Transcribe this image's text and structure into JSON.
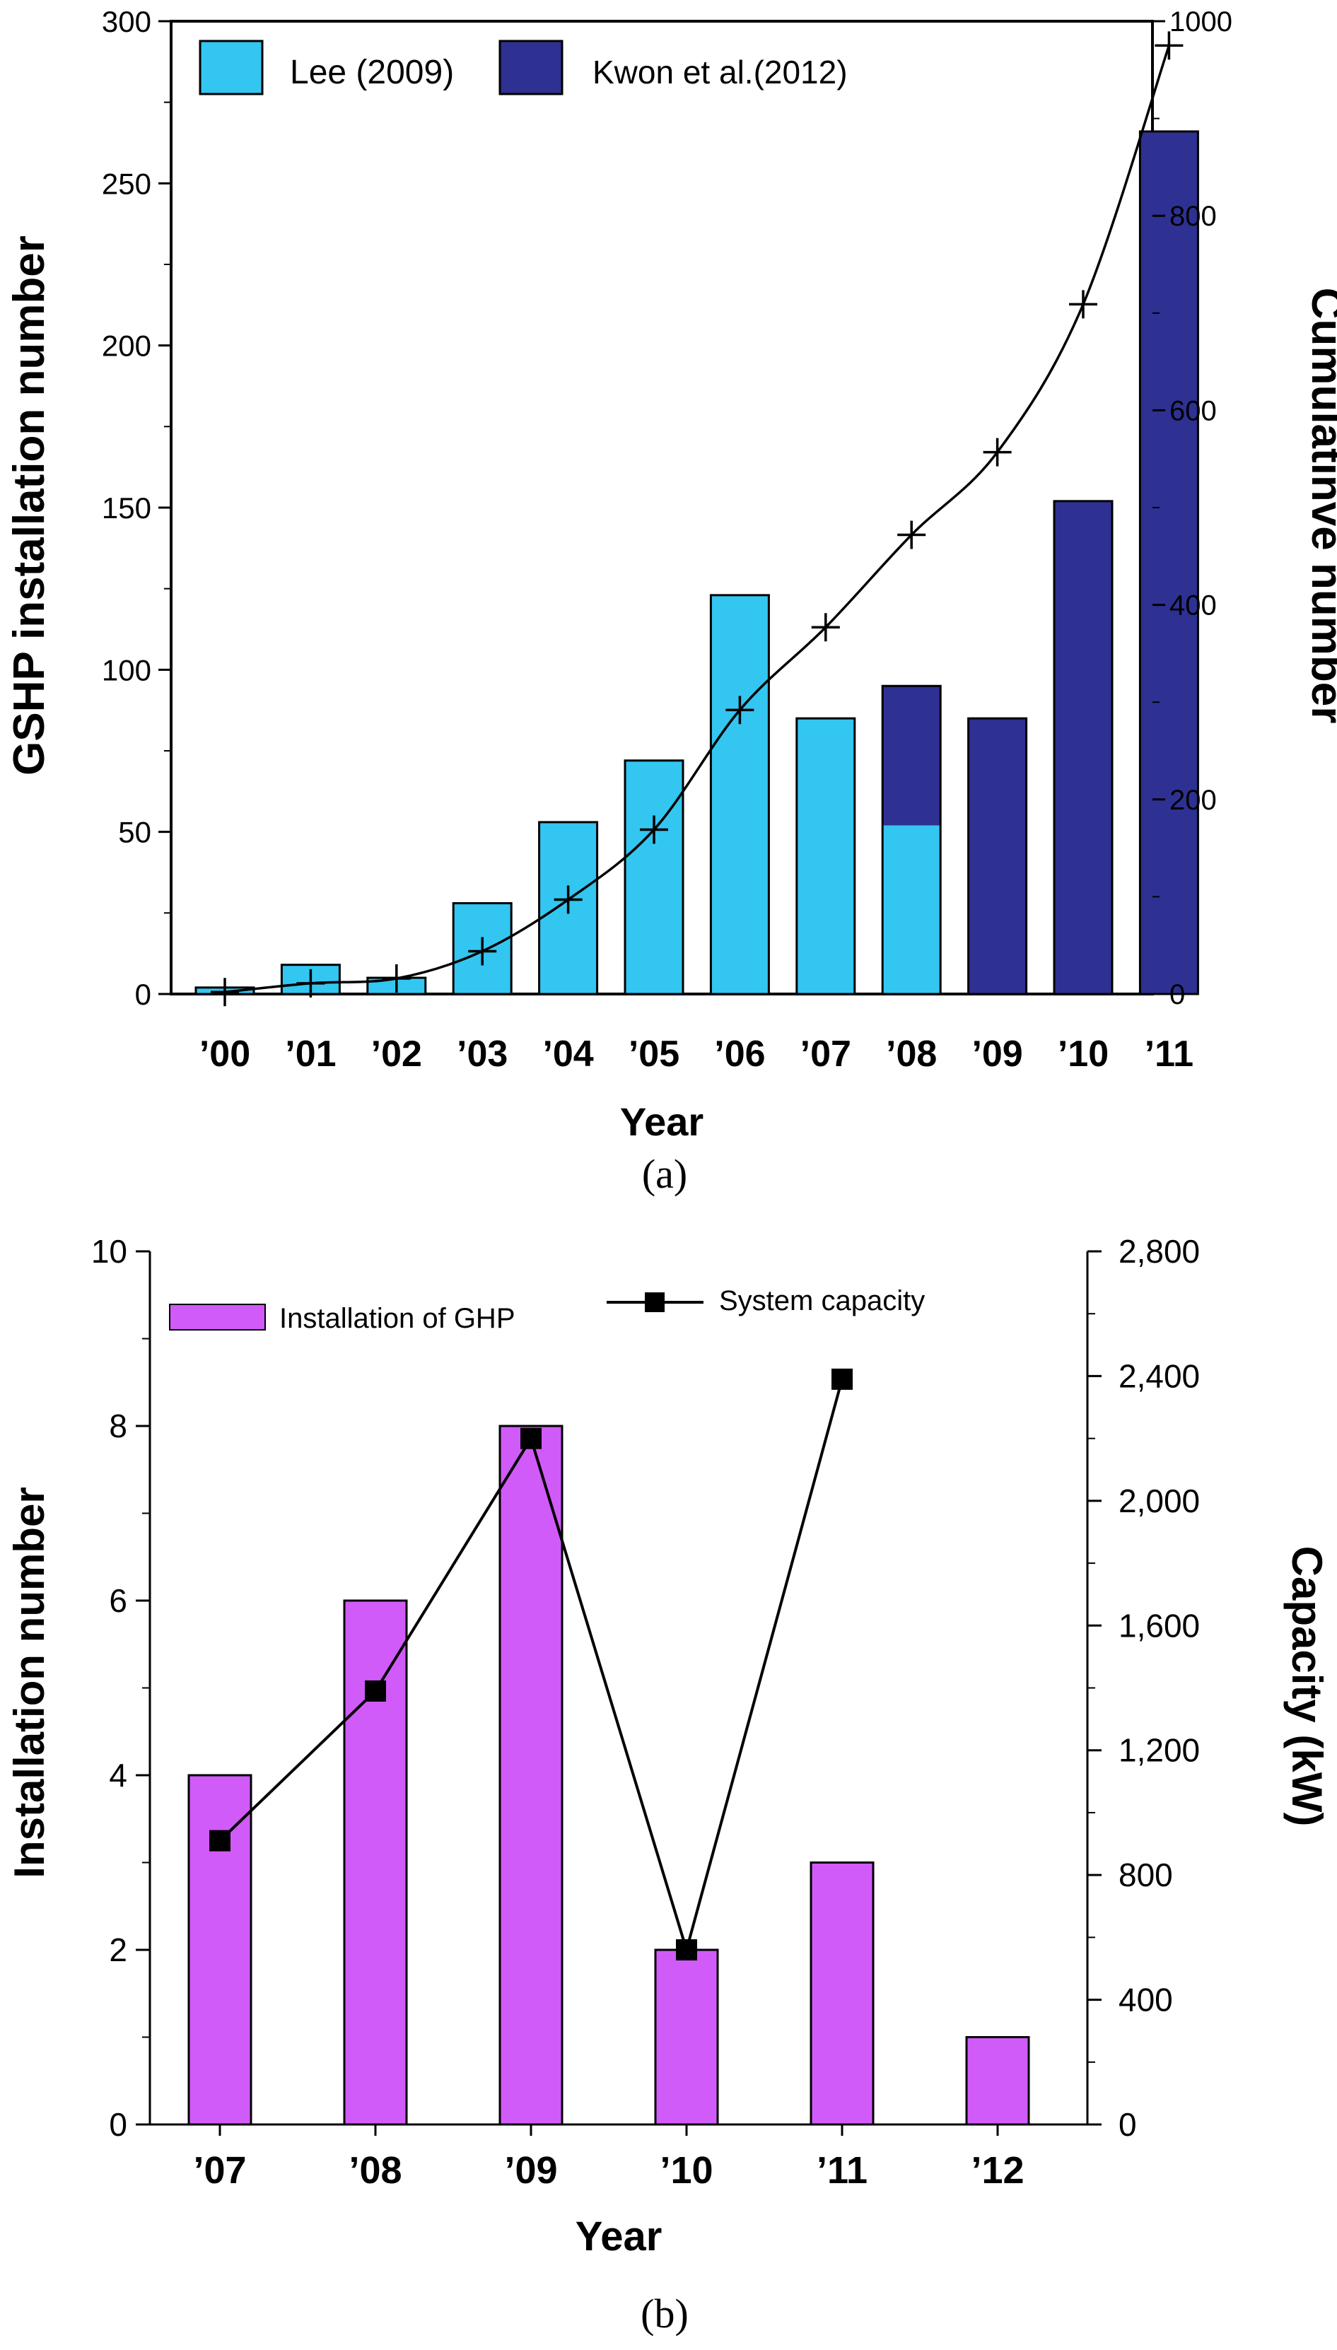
{
  "chart_data": [
    {
      "type": "bar",
      "panel_caption": "(a)",
      "categories": [
        "’00",
        "’01",
        "’02",
        "’03",
        "’04",
        "’05",
        "’06",
        "’07",
        "’08",
        "’09",
        "’10",
        "’11"
      ],
      "series": [
        {
          "name": "Lee (2009)",
          "color": "#33c6f1",
          "axis": "left",
          "values": [
            2,
            9,
            5,
            28,
            53,
            72,
            123,
            85,
            52,
            null,
            null,
            null
          ]
        },
        {
          "name": "Kwon et al.(2012)",
          "color": "#2e3192",
          "axis": "left",
          "stacked_on": "Lee (2009)",
          "values": [
            null,
            null,
            null,
            null,
            null,
            null,
            null,
            null,
            43,
            85,
            152,
            266
          ]
        },
        {
          "name": "Cumulative",
          "type": "line",
          "marker": "plus",
          "color": "#000000",
          "axis": "right",
          "values": [
            2,
            11,
            16,
            44,
            97,
            169,
            292,
            377,
            472,
            557,
            709,
            975
          ]
        }
      ],
      "xlabel": "Year",
      "ylabel": "GSHP installation number",
      "y2label": "Cumulatinve number",
      "ylim": [
        0,
        300
      ],
      "yticks": [
        0,
        50,
        100,
        150,
        200,
        250,
        300
      ],
      "ytick_labels": [
        "0",
        "50",
        "100",
        "150",
        "200",
        "250",
        "300"
      ],
      "y2lim": [
        0,
        1000
      ],
      "y2ticks": [
        0,
        200,
        400,
        600,
        800,
        1000
      ],
      "y2tick_labels": [
        "0",
        "200",
        "400",
        "600",
        "800",
        "1000"
      ],
      "legend_position": "top-left",
      "grid": false
    },
    {
      "type": "bar",
      "panel_caption": "(b)",
      "categories": [
        "’07",
        "’08",
        "’09",
        "’10",
        "’11",
        "’12"
      ],
      "series": [
        {
          "name": "Installation of GHP",
          "color": "#d15bf9",
          "axis": "left",
          "values": [
            4,
            6,
            8,
            2,
            3,
            1
          ]
        },
        {
          "name": "System capacity",
          "type": "line",
          "marker": "square",
          "color": "#000000",
          "axis": "right",
          "values": [
            910,
            1390,
            2200,
            560,
            2390,
            null
          ]
        }
      ],
      "xlabel": "Year",
      "ylabel": "Installation number",
      "y2label": "Capacity (kW)",
      "ylim": [
        0,
        10
      ],
      "yticks": [
        0,
        2,
        4,
        6,
        8,
        10
      ],
      "ytick_labels": [
        "0",
        "2",
        "4",
        "6",
        "8",
        "10"
      ],
      "y2lim": [
        0,
        2800
      ],
      "y2ticks": [
        0,
        400,
        800,
        1200,
        1600,
        2000,
        2400,
        2800
      ],
      "y2tick_labels": [
        "0",
        "400",
        "800",
        "1,200",
        "1,600",
        "2,000",
        "2,400",
        "2,800"
      ],
      "legend_position": "top-left",
      "grid": false
    }
  ]
}
